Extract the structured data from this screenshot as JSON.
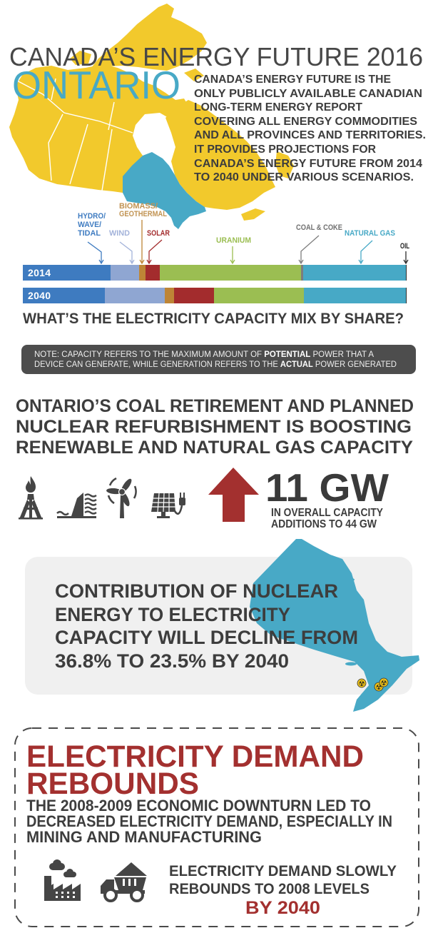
{
  "header": {
    "title": "CANADA’S ENERGY FUTURE 2016",
    "region": "ONTARIO",
    "intro_lines": [
      "CANADA’S ENERGY FUTURE IS THE",
      "ONLY PUBLICLY AVAILABLE CANADIAN",
      "LONG-TERM ENERGY REPORT",
      "COVERING ALL ENERGY COMMODITIES",
      "AND ALL PROVINCES AND TERRITORIES.",
      "IT PROVIDES PROJECTIONS FOR",
      "CANADA’S ENERGY FUTURE FROM 2014",
      "TO 2040 UNDER VARIOUS SCENARIOS."
    ]
  },
  "capacity_mix": {
    "source_labels": {
      "hydro": [
        "HYDRO/",
        "WAVE/",
        "TIDAL"
      ],
      "wind": "WIND",
      "biomass": [
        "BIOMASS/",
        "GEOTHERMAL"
      ],
      "solar": "SOLAR",
      "uranium": "URANIUM",
      "coal": "COAL & COKE",
      "natural_gas": "NATURAL GAS",
      "oil": "OIL"
    },
    "bars": [
      {
        "year": "2014"
      },
      {
        "year": "2040"
      }
    ],
    "question": "WHAT’S THE ELECTRICITY CAPACITY MIX BY SHARE?"
  },
  "note": {
    "line1_pre": "NOTE: CAPACITY REFERS TO THE MAXIMUM AMOUNT OF ",
    "line1_bold": "POTENTIAL",
    "line1_post": " POWER THAT A",
    "line2_pre": "DEVICE CAN GENERATE, WHILE GENERATION REFERS TO THE ",
    "line2_bold": "ACTUAL",
    "line2_post": " POWER GENERATED"
  },
  "capacity_additions": {
    "headline_lines": [
      "ONTARIO’S COAL RETIREMENT AND PLANNED",
      "NUCLEAR REFURBISHMENT IS BOOSTING",
      "RENEWABLE AND NATURAL GAS CAPACITY"
    ],
    "icons": [
      "natural-gas-rig",
      "hydro-dam",
      "wind-turbine",
      "solar-panel",
      "up-arrow"
    ],
    "stat": "11 GW",
    "stat_caption_lines": [
      "IN OVERALL CAPACITY",
      "ADDITIONS TO 44 GW"
    ]
  },
  "nuclear": {
    "lines": [
      "CONTRIBUTION OF NUCLEAR",
      "ENERGY TO ELECTRICITY",
      "CAPACITY WILL DECLINE FROM",
      "36.8% TO 23.5% BY 2040"
    ],
    "plant_icon": "radiation-symbol",
    "plant_count": 3,
    "plant_glyph": "☢"
  },
  "demand": {
    "title_lines": [
      "ELECTRICITY DEMAND",
      "REBOUNDS"
    ],
    "body_lines": [
      "THE 2008-2009 ECONOMIC DOWNTURN LED TO",
      "DECREASED ELECTRICITY DEMAND, ESPECIALLY IN",
      "MINING AND MANUFACTURING"
    ],
    "icons": [
      "factory",
      "mining-dump-truck"
    ],
    "conclusion_lines": [
      "ELECTRICITY DEMAND SLOWLY",
      "REBOUNDS TO 2008 LEVELS"
    ],
    "conclusion_highlight": "BY 2040"
  },
  "colors": {
    "title": "#474747",
    "text_dark": "#3d3d3d",
    "canada_map": "#F2C92C",
    "ontario": "#48A9C6",
    "accent_red": "#A3302F",
    "note_bg": "#4D4D4D",
    "note_text": "#EEEEEE",
    "note_bold": "#FFFFFF",
    "panel_bg": "#F0F0F0",
    "icon": "#454545",
    "radiation_yellow": "#F0C419",
    "dashed_border": "#4A4A4A"
  },
  "chart_data": {
    "type": "bar",
    "stacked": true,
    "orientation": "horizontal",
    "title": "WHAT’S THE ELECTRICITY CAPACITY MIX BY SHARE?",
    "xlabel": "",
    "ylabel": "",
    "unit": "% share of Ontario electricity capacity",
    "xlim": [
      0,
      100
    ],
    "grid": false,
    "legend_position": "top (arrow callouts above 2014 bar)",
    "categories": [
      "2014",
      "2040"
    ],
    "series": [
      {
        "name": "Hydro/Wave/Tidal",
        "values": [
          22.9,
          21.4
        ],
        "color": "#3E7BC0",
        "label_color": "#3F7CC1"
      },
      {
        "name": "Wind",
        "values": [
          7.4,
          15.6
        ],
        "color": "#8FA6D2",
        "label_color": "#A3B3DA"
      },
      {
        "name": "Biomass/Geothermal",
        "values": [
          1.7,
          2.4
        ],
        "color": "#BE8536",
        "label_color": "#C19352"
      },
      {
        "name": "Solar",
        "values": [
          3.7,
          10.4
        ],
        "color": "#A32C2D",
        "label_color": "#A32C2D"
      },
      {
        "name": "Uranium",
        "values": [
          36.8,
          23.5
        ],
        "color": "#9BBE52",
        "label_color": "#9BBE52"
      },
      {
        "name": "Coal & Coke",
        "values": [
          0.6,
          0.0
        ],
        "color": "#7D7D7D",
        "label_color": "#707070"
      },
      {
        "name": "Natural Gas",
        "values": [
          26.7,
          26.5
        ],
        "color": "#47A9C6",
        "label_color": "#47A9C6"
      },
      {
        "name": "Oil",
        "values": [
          0.2,
          0.2
        ],
        "color": "#2B2B2B",
        "label_color": "#222222"
      }
    ],
    "annotations": [
      "Nuclear (uranium) share declines from 36.8% to 23.5% by 2040",
      "11 GW in overall capacity additions to 44 GW"
    ]
  }
}
